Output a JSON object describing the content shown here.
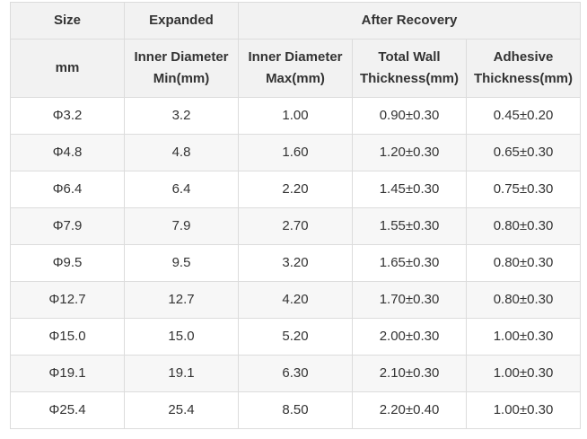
{
  "header": {
    "size": "Size",
    "expanded": "Expanded",
    "after_recovery": "After Recovery",
    "unit": "mm",
    "columns": [
      {
        "line1": "Inner Diameter",
        "line2": "Min(mm)"
      },
      {
        "line1": "Inner Diameter",
        "line2": "Max(mm)"
      },
      {
        "line1": "Total Wall",
        "line2": "Thickness(mm)"
      },
      {
        "line1": "Adhesive",
        "line2": "Thickness(mm)"
      }
    ]
  },
  "rows": [
    [
      "Φ3.2",
      "3.2",
      "1.00",
      "0.90±0.30",
      "0.45±0.20"
    ],
    [
      "Φ4.8",
      "4.8",
      "1.60",
      "1.20±0.30",
      "0.65±0.30"
    ],
    [
      "Φ6.4",
      "6.4",
      "2.20",
      "1.45±0.30",
      "0.75±0.30"
    ],
    [
      "Φ7.9",
      "7.9",
      "2.70",
      "1.55±0.30",
      "0.80±0.30"
    ],
    [
      "Φ9.5",
      "9.5",
      "3.20",
      "1.65±0.30",
      "0.80±0.30"
    ],
    [
      "Φ12.7",
      "12.7",
      "4.20",
      "1.70±0.30",
      "0.80±0.30"
    ],
    [
      "Φ15.0",
      "15.0",
      "5.20",
      "2.00±0.30",
      "1.00±0.30"
    ],
    [
      "Φ19.1",
      "19.1",
      "6.30",
      "2.10±0.30",
      "1.00±0.30"
    ],
    [
      "Φ25.4",
      "25.4",
      "8.50",
      "2.20±0.40",
      "1.00±0.30"
    ]
  ]
}
